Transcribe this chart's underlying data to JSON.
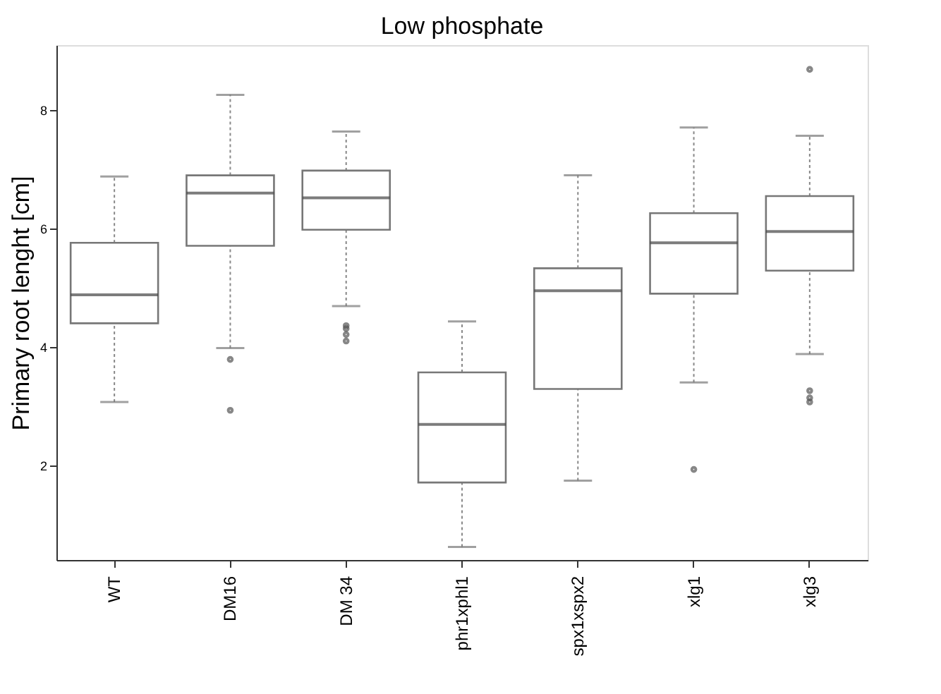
{
  "chart_data": {
    "type": "box",
    "title": "Low phosphate",
    "ylabel": "Primary root lenght [cm]",
    "categories": [
      "WT",
      "DM16",
      "DM 34",
      "phr1xphl1",
      "spx1xspx2",
      "xlg1",
      "xlg3"
    ],
    "boxes": [
      {
        "low": 3.07,
        "q1": 4.4,
        "median": 4.88,
        "q3": 5.76,
        "high": 6.88
      },
      {
        "low": 3.98,
        "q1": 5.71,
        "median": 6.6,
        "q3": 6.9,
        "high": 8.26,
        "outliers": [
          3.79,
          2.93
        ]
      },
      {
        "low": 4.69,
        "q1": 5.98,
        "median": 6.52,
        "q3": 6.98,
        "high": 7.64,
        "outliers": [
          4.36,
          4.31,
          4.21,
          4.1
        ]
      },
      {
        "low": 0.62,
        "q1": 1.71,
        "median": 2.69,
        "q3": 3.57,
        "high": 4.43
      },
      {
        "low": 1.74,
        "q1": 3.29,
        "median": 4.95,
        "q3": 5.33,
        "high": 6.9
      },
      {
        "low": 3.4,
        "q1": 4.9,
        "median": 5.76,
        "q3": 6.26,
        "high": 7.71,
        "outliers": [
          1.93
        ]
      },
      {
        "low": 3.88,
        "q1": 5.29,
        "median": 5.95,
        "q3": 6.55,
        "high": 7.57,
        "outliers": [
          8.69,
          3.26,
          3.14,
          3.07
        ]
      }
    ],
    "ylim": [
      0.4,
      9.1
    ],
    "yticks": [
      2,
      4,
      6,
      8
    ],
    "grid": false
  }
}
